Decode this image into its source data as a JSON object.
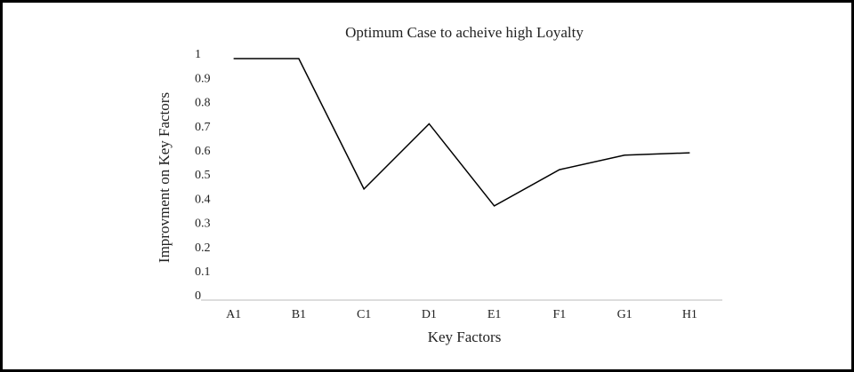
{
  "chart_data": {
    "type": "line",
    "title": "Optimum Case to acheive high Loyalty",
    "x_label": "Key Factors",
    "y_label": "Improvment on Key Factors",
    "categories": [
      "A1",
      "B1",
      "C1",
      "D1",
      "E1",
      "F1",
      "G1",
      "H1"
    ],
    "values": [
      1,
      1,
      0.46,
      0.73,
      0.39,
      0.54,
      0.6,
      0.61
    ],
    "color": "#000000",
    "ylim": [
      0,
      1
    ],
    "yticks": [
      0,
      0.1,
      0.2,
      0.3,
      0.4,
      0.5,
      0.6,
      0.7,
      0.8,
      0.9,
      1
    ],
    "grid": false
  }
}
